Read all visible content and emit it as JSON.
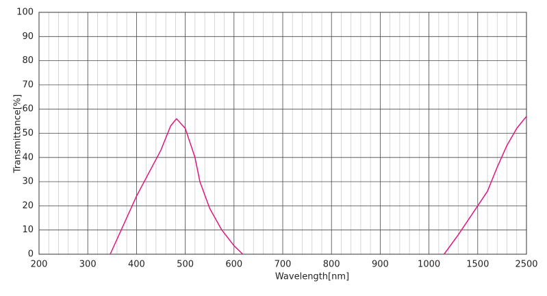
{
  "chart_data": {
    "type": "line",
    "x_label": "Wavelength[nm]",
    "y_label": "Transmittance[%]",
    "xticks": [
      200,
      300,
      400,
      500,
      600,
      700,
      800,
      900,
      1000,
      1500,
      2500
    ],
    "ylim": [
      0,
      100
    ],
    "yticks": [
      0,
      10,
      20,
      30,
      40,
      50,
      60,
      70,
      80,
      90,
      100
    ],
    "grid": true,
    "series": [
      {
        "color": "#e0157f",
        "x": [
          346,
          400,
          450,
          470,
          482,
          500,
          520,
          530,
          550,
          575,
          600,
          618
        ],
        "values": [
          0,
          24,
          43,
          53,
          56,
          52,
          40,
          30,
          19,
          10,
          3.5,
          0
        ]
      },
      {
        "color": "#e0157f",
        "x": [
          1155,
          1300,
          1500,
          1700,
          1900,
          2100,
          2300,
          2500
        ],
        "values": [
          0,
          8,
          20,
          26,
          36,
          45,
          52,
          57
        ]
      }
    ]
  }
}
